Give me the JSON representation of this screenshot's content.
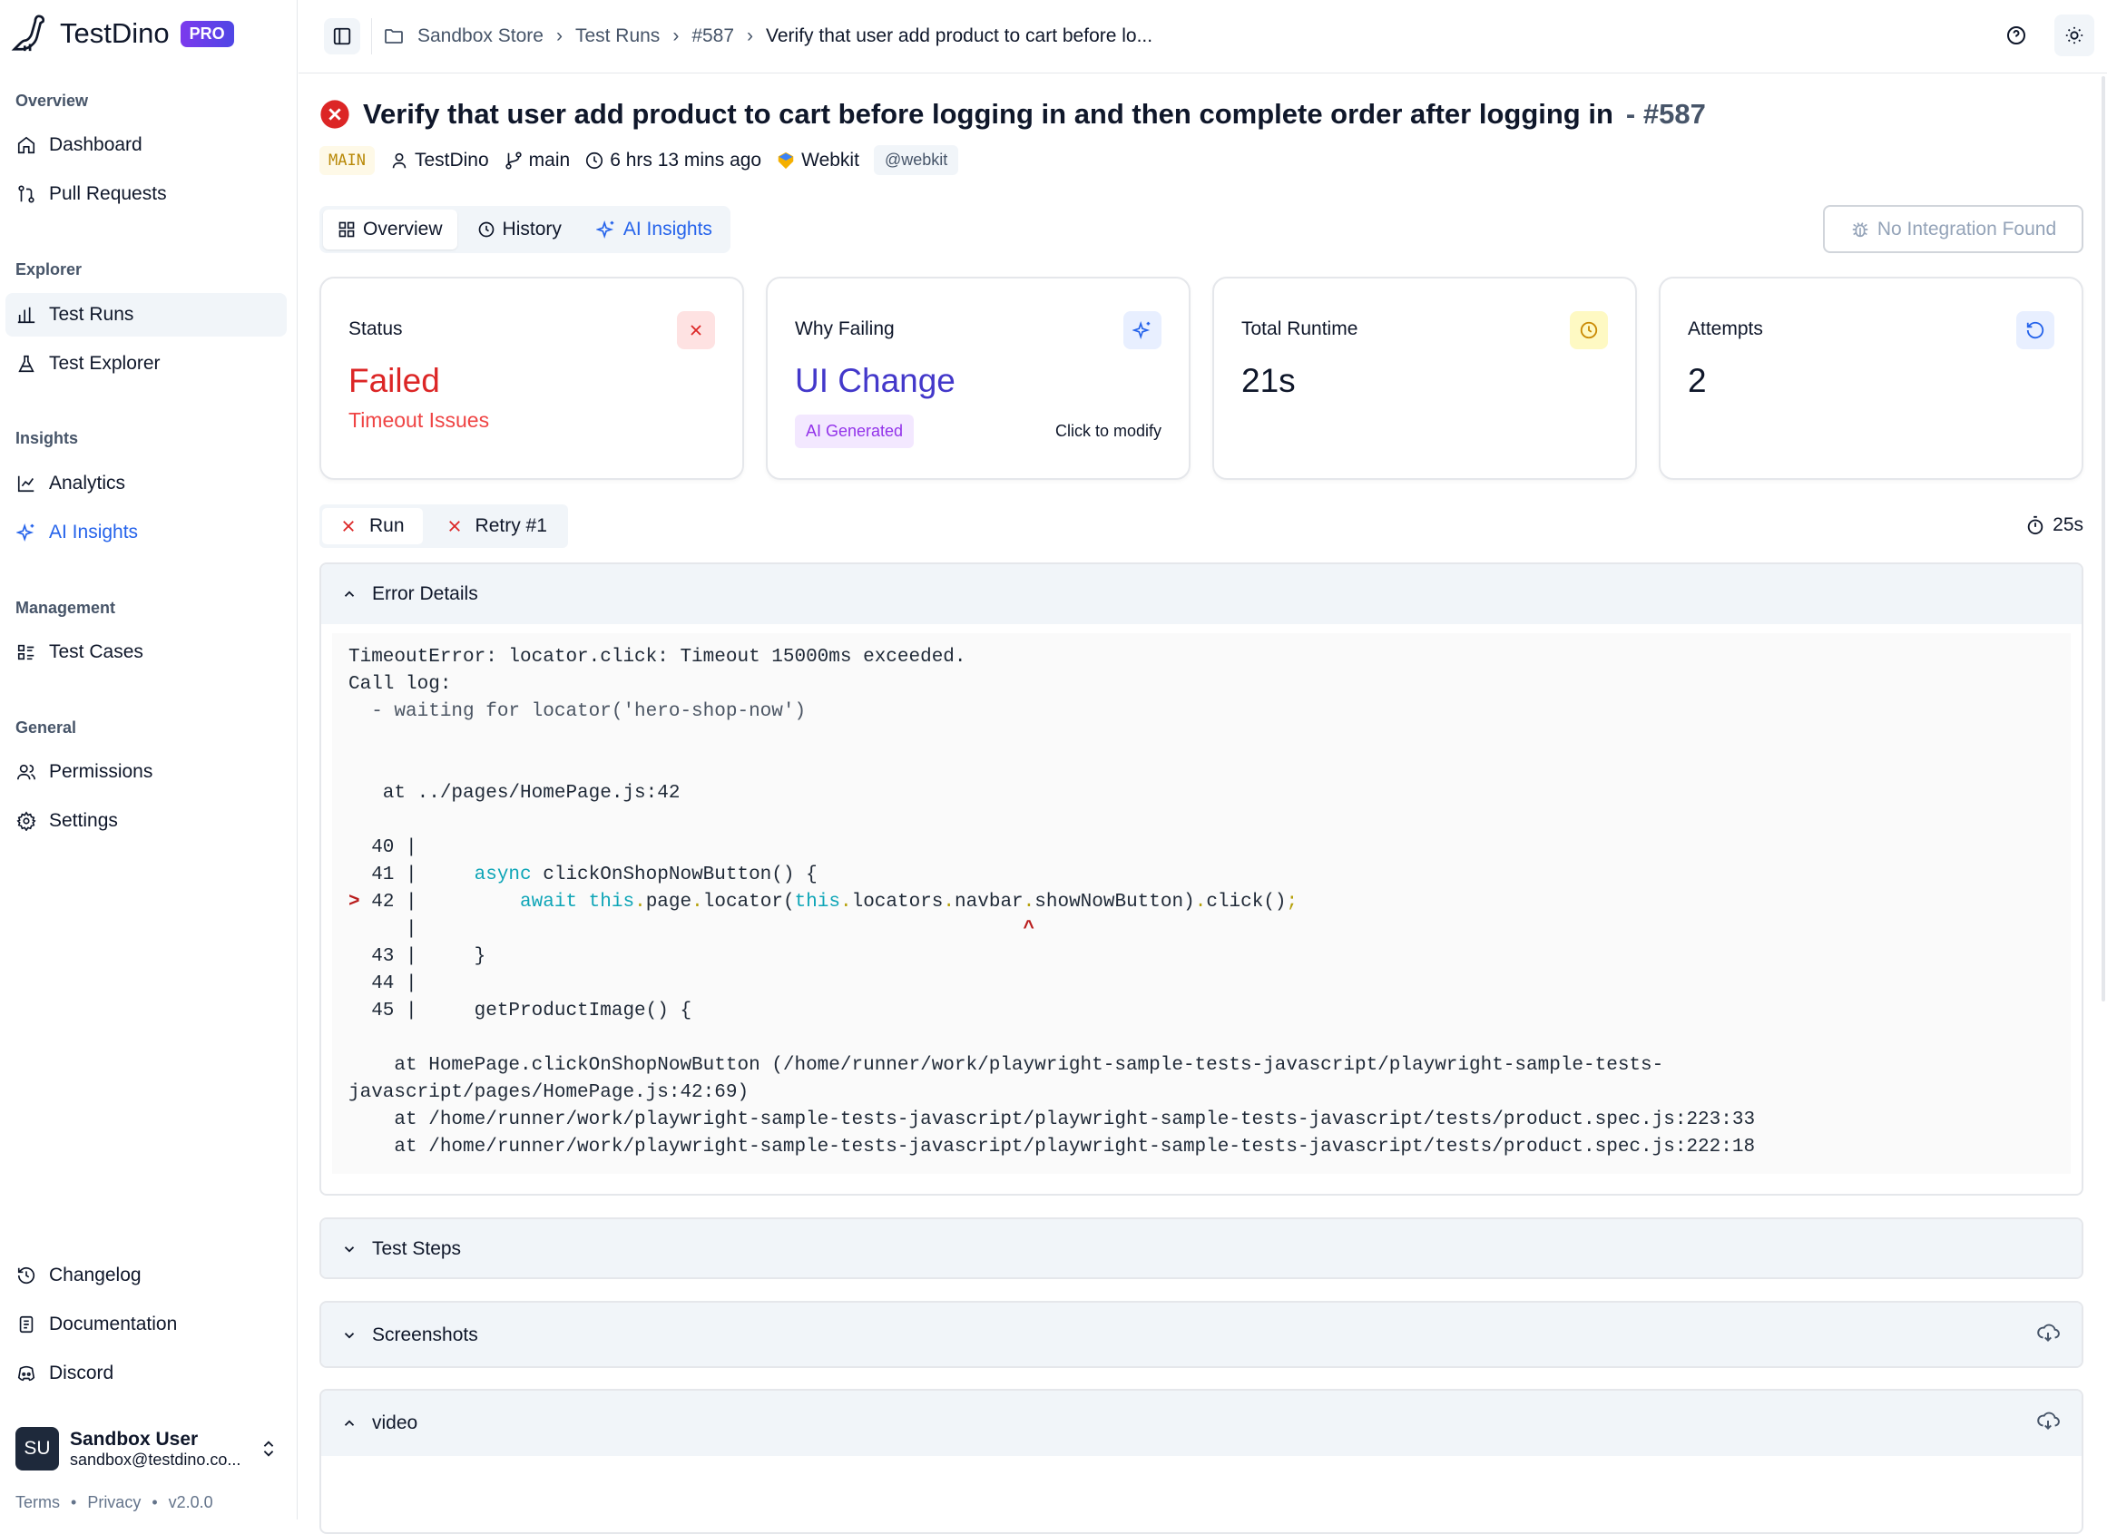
{
  "brand": {
    "name": "TestDino",
    "badge": "PRO"
  },
  "sidebar": {
    "sections": [
      {
        "label": "Overview",
        "items": [
          {
            "label": "Dashboard",
            "icon": "home-icon"
          },
          {
            "label": "Pull Requests",
            "icon": "git-pull-request-icon"
          }
        ]
      },
      {
        "label": "Explorer",
        "items": [
          {
            "label": "Test Runs",
            "icon": "bar-chart-icon",
            "active": true
          },
          {
            "label": "Test Explorer",
            "icon": "flask-icon"
          }
        ]
      },
      {
        "label": "Insights",
        "items": [
          {
            "label": "Analytics",
            "icon": "line-chart-icon"
          },
          {
            "label": "AI Insights",
            "icon": "sparkles-icon"
          }
        ]
      },
      {
        "label": "Management",
        "items": [
          {
            "label": "Test Cases",
            "icon": "list-icon"
          }
        ]
      },
      {
        "label": "General",
        "items": [
          {
            "label": "Permissions",
            "icon": "users-icon"
          },
          {
            "label": "Settings",
            "icon": "gear-icon"
          }
        ]
      }
    ],
    "bottom": [
      {
        "label": "Changelog"
      },
      {
        "label": "Documentation"
      },
      {
        "label": "Discord"
      }
    ],
    "user": {
      "initials": "SU",
      "name": "Sandbox User",
      "email": "sandbox@testdino.co..."
    },
    "footer": {
      "terms": "Terms",
      "privacy": "Privacy",
      "version": "v2.0.0",
      "sep": "•"
    }
  },
  "breadcrumb": [
    "Sandbox Store",
    "Test Runs",
    "#587",
    "Verify that user add product to cart before lo..."
  ],
  "test": {
    "title": "Verify that user add product to cart before logging in and then complete order after logging in",
    "number": "- #587",
    "branch_badge": "MAIN",
    "author": "TestDino",
    "branch": "main",
    "time": "6 hrs 13 mins ago",
    "browser": "Webkit",
    "tag": "@webkit"
  },
  "tabs": [
    {
      "label": "Overview"
    },
    {
      "label": "History"
    },
    {
      "label": "AI Insights"
    }
  ],
  "integration": "No Integration Found",
  "cards": {
    "status": {
      "label": "Status",
      "value": "Failed",
      "sub": "Timeout Issues"
    },
    "why": {
      "label": "Why Failing",
      "value": "UI Change",
      "badge": "AI Generated",
      "action": "Click to modify"
    },
    "runtime": {
      "label": "Total Runtime",
      "value": "21s"
    },
    "attempts": {
      "label": "Attempts",
      "value": "2"
    }
  },
  "runs": [
    {
      "label": "Run"
    },
    {
      "label": "Retry #1"
    }
  ],
  "duration": "25s",
  "panels": {
    "error": "Error Details",
    "steps": "Test Steps",
    "screenshots": "Screenshots",
    "video": "video"
  },
  "error": {
    "lines": [
      [
        {
          "t": "TimeoutError: locator.click: Timeout 15000ms exceeded."
        }
      ],
      [
        {
          "t": "Call log:"
        }
      ],
      [
        {
          "t": "  - waiting for locator('hero-shop-now')",
          "c": "g"
        }
      ],
      [],
      [],
      [
        {
          "t": "   at ../pages/HomePage.js:42"
        }
      ],
      [],
      [
        {
          "t": "  40 |"
        }
      ],
      [
        {
          "t": "  41 |     "
        },
        {
          "t": "async",
          "c": "k"
        },
        {
          "t": " clickOnShopNowButton() {"
        }
      ],
      [
        {
          "t": "> ",
          "c": "mk"
        },
        {
          "t": "42 |         "
        },
        {
          "t": "await",
          "c": "k"
        },
        {
          "t": " "
        },
        {
          "t": "this",
          "c": "k"
        },
        {
          "t": ".",
          "c": "dt"
        },
        {
          "t": "page"
        },
        {
          "t": ".",
          "c": "dt"
        },
        {
          "t": "locator("
        },
        {
          "t": "this",
          "c": "k"
        },
        {
          "t": ".",
          "c": "dt"
        },
        {
          "t": "locators"
        },
        {
          "t": ".",
          "c": "dt"
        },
        {
          "t": "navbar"
        },
        {
          "t": ".",
          "c": "dt"
        },
        {
          "t": "showNowButton)"
        },
        {
          "t": ".",
          "c": "dt"
        },
        {
          "t": "click()"
        },
        {
          "t": ";",
          "c": "dt"
        }
      ],
      [
        {
          "t": "     |                                                     "
        },
        {
          "t": "^",
          "c": "mk"
        }
      ],
      [
        {
          "t": "  43 |     }"
        }
      ],
      [
        {
          "t": "  44 |"
        }
      ],
      [
        {
          "t": "  45 |     getProductImage() {"
        }
      ],
      [],
      [
        {
          "t": "    at HomePage.clickOnShopNowButton (/home/runner/work/playwright-sample-tests-javascript/playwright-sample-tests-"
        }
      ],
      [
        {
          "t": "javascript/pages/HomePage.js:42:69)"
        }
      ],
      [
        {
          "t": "    at /home/runner/work/playwright-sample-tests-javascript/playwright-sample-tests-javascript/tests/product.spec.js:223:33"
        }
      ],
      [
        {
          "t": "    at /home/runner/work/playwright-sample-tests-javascript/playwright-sample-tests-javascript/tests/product.spec.js:222:18"
        }
      ]
    ]
  },
  "colors": {
    "failed": "#dc2626",
    "accent": "#2563eb",
    "ui_change": "#4338ca",
    "ai_badge": "#9333ea"
  }
}
